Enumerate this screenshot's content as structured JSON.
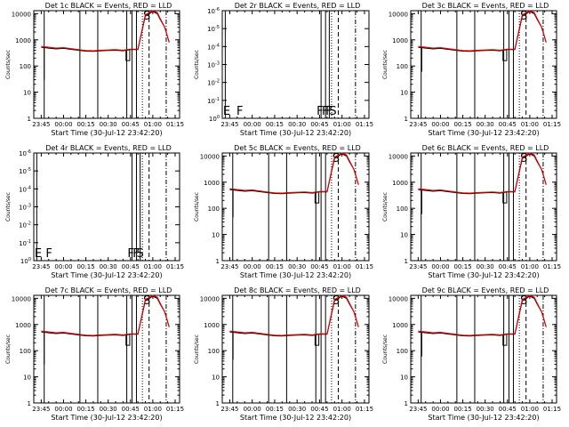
{
  "colors": {
    "events": "#000000",
    "lld": "#e00000",
    "background": "#ffffff"
  },
  "chart_data": [
    {
      "type": "line",
      "title": "Det 1c BLACK = Events, RED = LLD",
      "xlabel": "Start Time (30-Jul-12 23:42:20)",
      "ylabel": "Counts/sec",
      "y_scale": "log",
      "ylim": [
        1,
        13000
      ],
      "y_ticks": [
        1,
        10,
        100,
        1000,
        10000
      ],
      "y_tick_labels": [
        "1",
        "10",
        "100",
        "1000",
        "10000"
      ],
      "x_ticks": [
        "23:45",
        "00:00",
        "00:15",
        "00:30",
        "00:45",
        "01:00",
        "01:15"
      ],
      "flags": [
        "S"
      ],
      "has_data": true
    },
    {
      "type": "line",
      "title": "Det 2r BLACK = Events, RED = LLD",
      "xlabel": "Start Time (30-Jul-12 23:42:20)",
      "ylabel": "Counts/sec",
      "y_scale": "log",
      "ylim": [
        1,
        1e-06
      ],
      "y_ticks": [
        1,
        0.1,
        0.01,
        0.001,
        0.0001,
        1e-05,
        1e-06
      ],
      "y_tick_labels": [
        "10^0",
        "10^-1",
        "10^-2",
        "10^-3",
        "10^-4",
        "10^-5",
        "10^-6"
      ],
      "x_ticks": [
        "23:45",
        "00:00",
        "00:15",
        "00:30",
        "00:45",
        "01:00",
        "01:15"
      ],
      "flags": [
        "E",
        "F",
        "F",
        "F",
        "F",
        "S"
      ],
      "has_data": false
    },
    {
      "type": "line",
      "title": "Det 3c BLACK = Events, RED = LLD",
      "xlabel": "Start Time (30-Jul-12 23:42:20)",
      "ylabel": "Counts/sec",
      "y_scale": "log",
      "ylim": [
        1,
        13000
      ],
      "y_ticks": [
        1,
        10,
        100,
        1000,
        10000
      ],
      "y_tick_labels": [
        "1",
        "10",
        "100",
        "1000",
        "10000"
      ],
      "x_ticks": [
        "23:45",
        "00:00",
        "00:15",
        "00:30",
        "00:45",
        "01:00",
        "01:15"
      ],
      "flags": [
        "S"
      ],
      "has_data": true
    },
    {
      "type": "line",
      "title": "Det 4r BLACK = Events, RED = LLD",
      "xlabel": "Start Time (30-Jul-12 23:42:20)",
      "ylabel": "Counts/sec",
      "y_scale": "log",
      "ylim": [
        1,
        1e-06
      ],
      "y_ticks": [
        1,
        0.1,
        0.01,
        0.001,
        0.0001,
        1e-05,
        1e-06
      ],
      "y_tick_labels": [
        "10^0",
        "10^-1",
        "10^-2",
        "10^-3",
        "10^-4",
        "10^-5",
        "10^-6"
      ],
      "x_ticks": [
        "23:45",
        "00:00",
        "00:15",
        "00:30",
        "00:45",
        "01:00",
        "01:15"
      ],
      "flags": [
        "E",
        "F",
        "F",
        "F",
        "S"
      ],
      "has_data": false
    },
    {
      "type": "line",
      "title": "Det 5c BLACK = Events, RED = LLD",
      "xlabel": "Start Time (30-Jul-12 23:42:20)",
      "ylabel": "Counts/sec",
      "y_scale": "log",
      "ylim": [
        1,
        13000
      ],
      "y_ticks": [
        1,
        10,
        100,
        1000,
        10000
      ],
      "y_tick_labels": [
        "1",
        "10",
        "100",
        "1000",
        "10000"
      ],
      "x_ticks": [
        "23:45",
        "00:00",
        "00:15",
        "00:30",
        "00:45",
        "01:00",
        "01:15"
      ],
      "flags": [
        "S"
      ],
      "has_data": true
    },
    {
      "type": "line",
      "title": "Det 6c BLACK = Events, RED = LLD",
      "xlabel": "Start Time (30-Jul-12 23:42:20)",
      "ylabel": "Counts/sec",
      "y_scale": "log",
      "ylim": [
        1,
        13000
      ],
      "y_ticks": [
        1,
        10,
        100,
        1000,
        10000
      ],
      "y_tick_labels": [
        "1",
        "10",
        "100",
        "1000",
        "10000"
      ],
      "x_ticks": [
        "23:45",
        "00:00",
        "00:15",
        "00:30",
        "00:45",
        "01:00",
        "01:15"
      ],
      "flags": [
        "S"
      ],
      "has_data": true
    },
    {
      "type": "line",
      "title": "Det 7c BLACK = Events, RED = LLD",
      "xlabel": "Start Time (30-Jul-12 23:42:20)",
      "ylabel": "Counts/sec",
      "y_scale": "log",
      "ylim": [
        1,
        13000
      ],
      "y_ticks": [
        1,
        10,
        100,
        1000,
        10000
      ],
      "y_tick_labels": [
        "1",
        "10",
        "100",
        "1000",
        "10000"
      ],
      "x_ticks": [
        "23:45",
        "00:00",
        "00:15",
        "00:30",
        "00:45",
        "01:00",
        "01:15"
      ],
      "flags": [
        "S"
      ],
      "has_data": true
    },
    {
      "type": "line",
      "title": "Det 8c BLACK = Events, RED = LLD",
      "xlabel": "Start Time (30-Jul-12 23:42:20)",
      "ylabel": "Counts/sec",
      "y_scale": "log",
      "ylim": [
        1,
        13000
      ],
      "y_ticks": [
        1,
        10,
        100,
        1000,
        10000
      ],
      "y_tick_labels": [
        "1",
        "10",
        "100",
        "1000",
        "10000"
      ],
      "x_ticks": [
        "23:45",
        "00:00",
        "00:15",
        "00:30",
        "00:45",
        "01:00",
        "01:15"
      ],
      "flags": [
        "S"
      ],
      "has_data": true
    },
    {
      "type": "line",
      "title": "Det 9c BLACK = Events, RED = LLD",
      "xlabel": "Start Time (30-Jul-12 23:42:20)",
      "ylabel": "Counts/sec",
      "y_scale": "log",
      "ylim": [
        1,
        13000
      ],
      "y_ticks": [
        1,
        10,
        100,
        1000,
        10000
      ],
      "y_tick_labels": [
        "1",
        "10",
        "100",
        "1000",
        "10000"
      ],
      "x_ticks": [
        "23:45",
        "00:00",
        "00:15",
        "00:30",
        "00:45",
        "01:00",
        "01:15"
      ],
      "flags": [
        "S"
      ],
      "has_data": true
    }
  ],
  "series_profile": {
    "time_minutes": [
      0,
      5,
      10,
      15,
      20,
      25,
      30,
      35,
      40,
      45,
      50,
      55,
      60,
      65,
      70,
      75,
      78,
      80,
      83,
      86
    ],
    "events_rate": [
      520,
      480,
      450,
      470,
      430,
      400,
      370,
      360,
      380,
      390,
      400,
      380,
      420,
      420,
      8000,
      12000,
      10000,
      6000,
      3000,
      800
    ],
    "lld_rate": [
      560,
      520,
      480,
      500,
      460,
      420,
      390,
      380,
      400,
      410,
      420,
      400,
      440,
      440,
      9000,
      13000,
      11000,
      6500,
      3000,
      800
    ]
  }
}
